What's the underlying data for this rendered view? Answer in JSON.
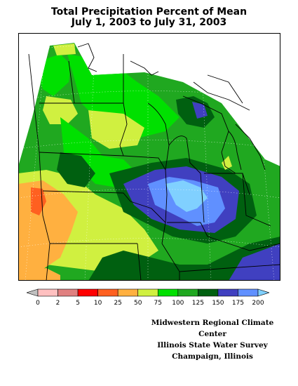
{
  "title": {
    "line1": "Total Precipitation Percent of Mean",
    "line2": "July 1, 2003 to July 31, 2003"
  },
  "legend": {
    "colors": [
      "#c0c0c0",
      "#ffc0c0",
      "#e08080",
      "#ff0000",
      "#ff6020",
      "#ffb040",
      "#d0f040",
      "#00e000",
      "#20a820",
      "#006010",
      "#4040c0",
      "#6090ff",
      "#80d0ff"
    ],
    "ticks": [
      "0",
      "2",
      "5",
      "10",
      "25",
      "50",
      "75",
      "100",
      "125",
      "150",
      "175",
      "200"
    ]
  },
  "credits": {
    "line1": "Midwestern Regional Climate Center",
    "line2": "Illinois State Water Survey",
    "line3": "Champaign, Illinois"
  }
}
